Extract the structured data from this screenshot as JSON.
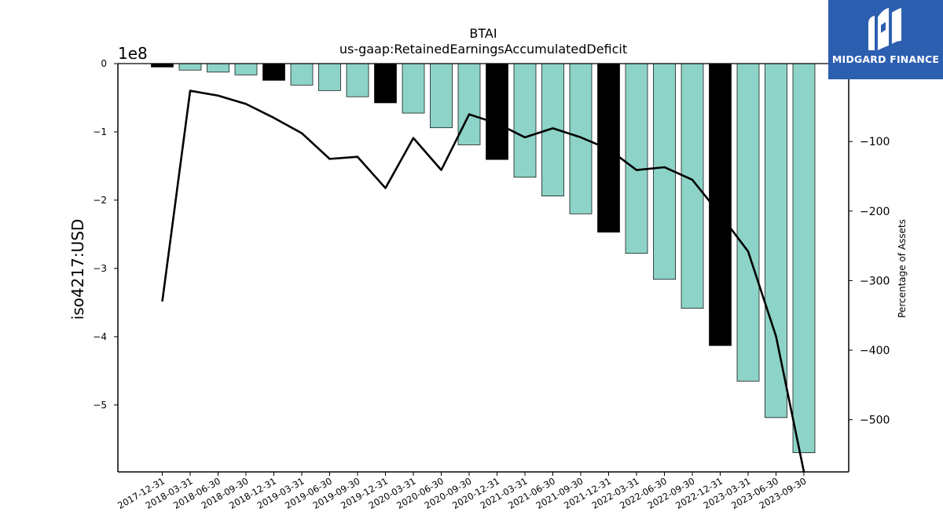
{
  "chart_data": {
    "type": "bar",
    "title": "BTAI",
    "subtitle": "us-gaap:RetainedEarningsAccumulatedDeficit",
    "ylabel": "iso4217:USD",
    "y_offset_label": "1e8",
    "y2label": "Percentage of Assets",
    "categories": [
      "2017-12-31",
      "2018-03-31",
      "2018-06-30",
      "2018-09-30",
      "2018-12-31",
      "2019-03-31",
      "2019-06-30",
      "2019-09-30",
      "2019-12-31",
      "2020-03-31",
      "2020-06-30",
      "2020-09-30",
      "2020-12-31",
      "2021-03-31",
      "2021-06-30",
      "2021-09-30",
      "2021-12-31",
      "2022-03-31",
      "2022-06-30",
      "2022-09-30",
      "2022-12-31",
      "2023-03-31",
      "2023-06-30",
      "2023-09-30"
    ],
    "series": [
      {
        "values": [
          -5000000,
          -9500000,
          -12500000,
          -16500000,
          -24500000,
          -31500000,
          -39500000,
          -48500000,
          -57500000,
          -72500000,
          -94000000,
          -119000000,
          -140500000,
          -166500000,
          -194000000,
          -220000000,
          -247000000,
          -278000000,
          -316000000,
          -358500000,
          -413000000,
          -465000000,
          -518500000,
          -570000000
        ],
        "highlight": [
          true,
          false,
          false,
          false,
          true,
          false,
          false,
          false,
          true,
          false,
          false,
          false,
          true,
          false,
          false,
          false,
          true,
          false,
          false,
          false,
          true,
          false,
          false,
          false
        ],
        "color": "#8dd3c7",
        "highlight_color": "#000000"
      },
      {
        "axis": "right",
        "values": [
          -330,
          -27,
          -34,
          -46,
          -66,
          -88,
          -125,
          -122,
          -167,
          -95,
          -141,
          -61,
          -74,
          -94,
          -81,
          -94,
          -111,
          -141,
          -137,
          -155,
          -205,
          -258,
          -380,
          -575
        ]
      }
    ],
    "yticks": [
      "0",
      "−1",
      "−2",
      "−3",
      "−4",
      "−5"
    ],
    "ytick_values": [
      0,
      -100000000,
      -200000000,
      -300000000,
      -400000000,
      -500000000
    ],
    "ylim": [
      -598000000,
      0
    ],
    "y2ticks": [
      "−100",
      "−200",
      "−300",
      "−400",
      "−500"
    ],
    "y2tick_values": [
      -100,
      -200,
      -300,
      -400,
      -500
    ],
    "y2lim": [
      -575,
      12
    ]
  },
  "logo": {
    "text": "MIDGARD FINANCE"
  }
}
